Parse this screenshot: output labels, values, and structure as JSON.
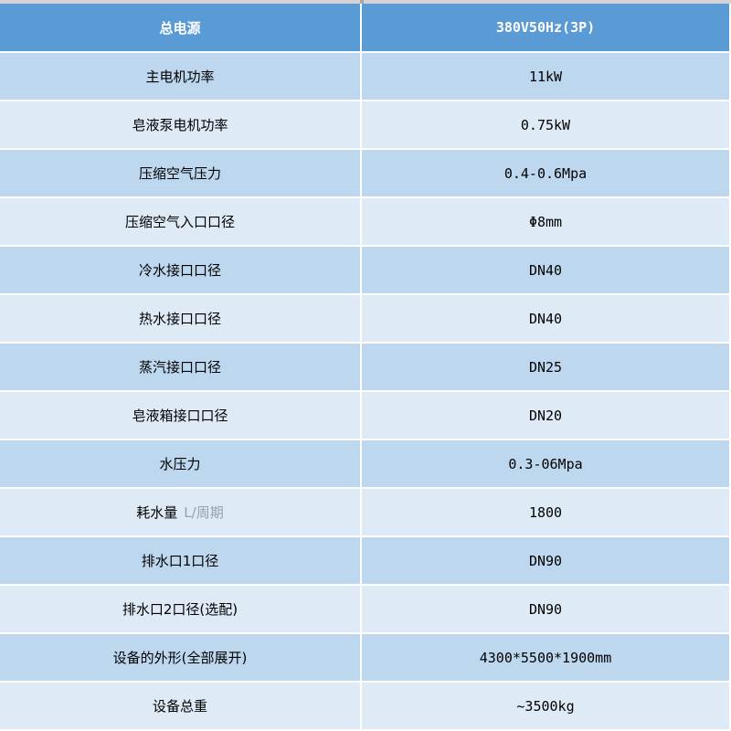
{
  "table": {
    "header": {
      "label": "总电源",
      "value": "380V50Hz(3P)"
    },
    "colors": {
      "header_bg": "#5b9bd5",
      "header_text": "#ffffff",
      "row_odd_bg": "#bdd7ee",
      "row_even_bg": "#deeaf6",
      "grid_divider": "#ffffff",
      "top_edge_strip": "#d3d3d3",
      "label_text": "#000000",
      "unit_text": "#98a0a8"
    },
    "rows": [
      {
        "label": "主电机功率",
        "value": "11kW"
      },
      {
        "label": "皂液泵电机功率",
        "value": "0.75kW"
      },
      {
        "label": "压缩空气压力",
        "value": "0.4-0.6Mpa"
      },
      {
        "label": "压缩空气入口口径",
        "value": "Φ8mm"
      },
      {
        "label": "冷水接口口径",
        "value": "DN40"
      },
      {
        "label": "热水接口口径",
        "value": "DN40"
      },
      {
        "label": "蒸汽接口口径",
        "value": "DN25"
      },
      {
        "label": "皂液箱接口口径",
        "value": "DN20"
      },
      {
        "label": "水压力",
        "value": "0.3-06Mpa"
      },
      {
        "label": "耗水量",
        "label_unit": "L/周期",
        "value": "1800"
      },
      {
        "label": "排水口1口径",
        "value": "DN90"
      },
      {
        "label": "排水口2口径(选配)",
        "value": "DN90"
      },
      {
        "label": "设备的外形(全部展开)",
        "value": "4300*5500*1900mm"
      },
      {
        "label": "设备总重",
        "value": "~3500kg"
      }
    ]
  },
  "chart_data": {
    "type": "table",
    "header": [
      "总电源",
      "380V50Hz(3P)"
    ],
    "rows": [
      [
        "主电机功率",
        "11kW"
      ],
      [
        "皂液泵电机功率",
        "0.75kW"
      ],
      [
        "压缩空气压力",
        "0.4-0.6Mpa"
      ],
      [
        "压缩空气入口口径",
        "Φ8mm"
      ],
      [
        "冷水接口口径",
        "DN40"
      ],
      [
        "热水接口口径",
        "DN40"
      ],
      [
        "蒸汽接口口径",
        "DN25"
      ],
      [
        "皂液箱接口口径",
        "DN20"
      ],
      [
        "水压力",
        "0.3-06Mpa"
      ],
      [
        "耗水量 L/周期",
        "1800"
      ],
      [
        "排水口1口径",
        "DN90"
      ],
      [
        "排水口2口径(选配)",
        "DN90"
      ],
      [
        "设备的外形(全部展开)",
        "4300*5500*1900mm"
      ],
      [
        "设备总重",
        "~3500kg"
      ]
    ]
  }
}
